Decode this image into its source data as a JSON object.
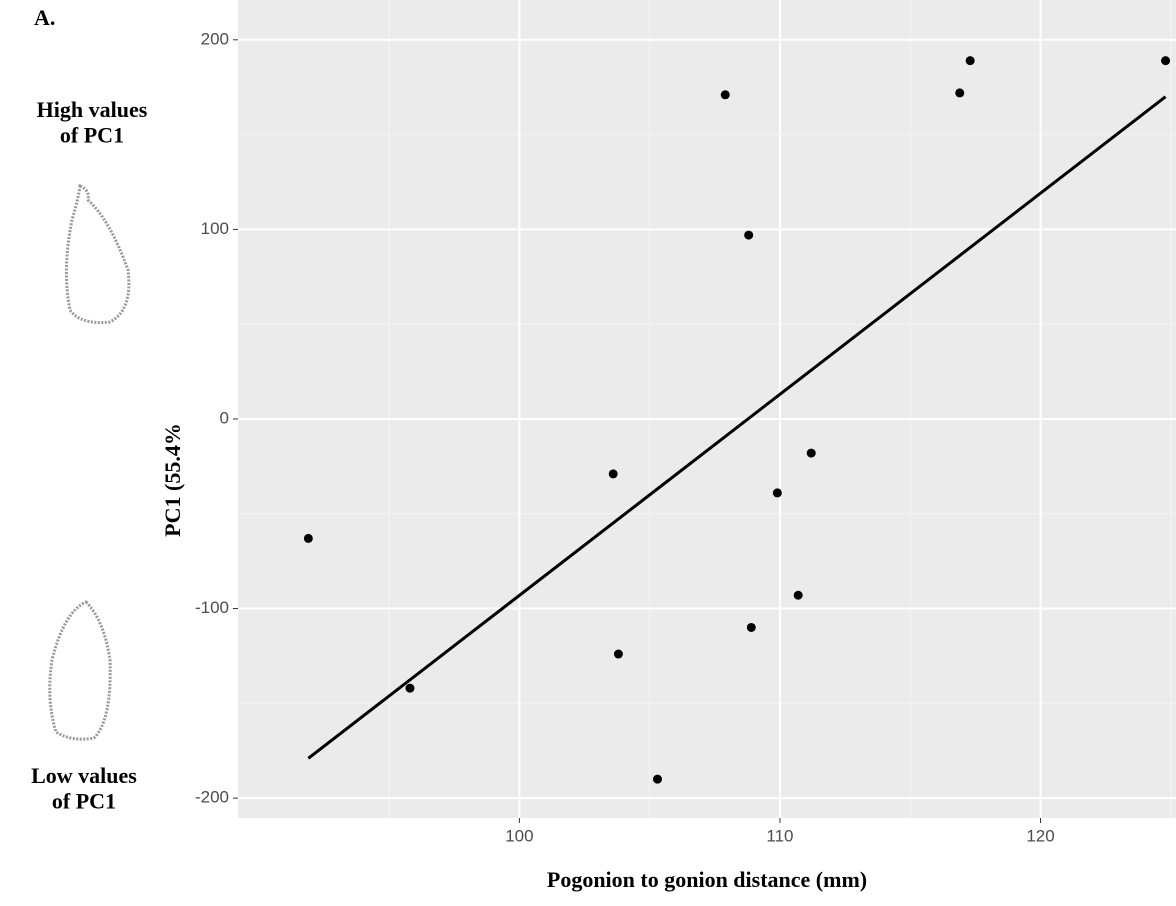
{
  "chart_data": {
    "type": "scatter",
    "panel_label": "A.",
    "annotations": [
      "High values\nof PC1",
      "Low values\nof PC1"
    ],
    "x_label": "Pogonion to gonion distance (mm)",
    "y_label": "PC1 (55.4%",
    "x": [
      91.9,
      95.8,
      103.6,
      103.8,
      105.3,
      107.9,
      108.8,
      108.9,
      109.9,
      110.7,
      111.2,
      116.9,
      117.3,
      124.8
    ],
    "values": [
      -63,
      -142,
      -29,
      -124,
      -190,
      171,
      97,
      -110,
      -39,
      -93,
      -18,
      172,
      189,
      189
    ],
    "color": "#000000",
    "fit_line": {
      "x": [
        91.9,
        124.8
      ],
      "values": [
        -179,
        170
      ],
      "color": "#000000"
    },
    "xlim": [
      89.2,
      125.2
    ],
    "ylim": [
      -210.5,
      221
    ],
    "xticks": [
      100,
      110,
      120
    ],
    "yticks": [
      -200,
      -100,
      0,
      100,
      200
    ],
    "grid": true
  }
}
